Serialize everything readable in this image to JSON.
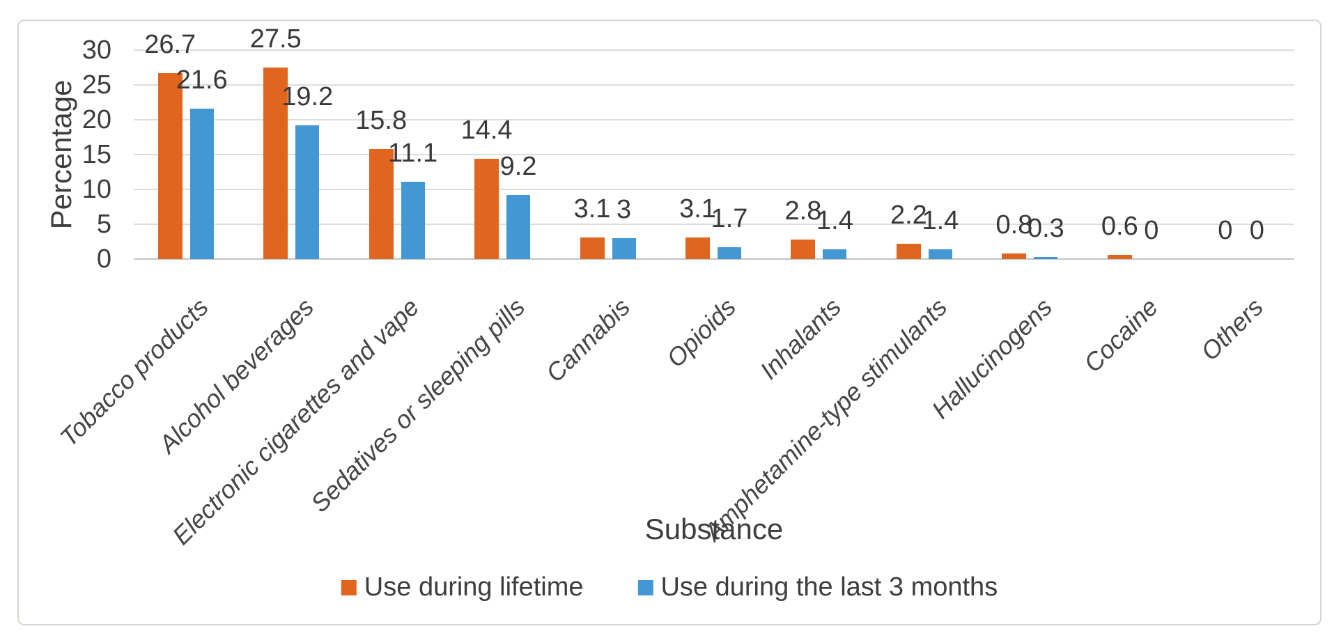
{
  "chart_data": {
    "type": "bar",
    "title": "",
    "categories": [
      "Tobacco products",
      "Alcohol beverages",
      "Electronic cigarettes and vape",
      "Sedatives or sleeping pills",
      "Cannabis",
      "Opioids",
      "Inhalants",
      "Amphetamine-type stimulants",
      "Hallucinogens",
      "Cocaine",
      "Others"
    ],
    "series": [
      {
        "name": "Use during lifetime",
        "color": "#E0651E",
        "values": [
          26.7,
          27.5,
          15.8,
          14.4,
          3.1,
          3.1,
          2.8,
          2.2,
          0.8,
          0.6,
          0
        ],
        "labels": [
          "26.7",
          "27.5",
          "15.8",
          "14.4",
          "3.1",
          "3.1",
          "2.8",
          "2.2",
          "0.8",
          "0.6",
          "0"
        ]
      },
      {
        "name": "Use during the last 3 months",
        "color": "#4397D3",
        "values": [
          21.6,
          19.2,
          11.1,
          9.2,
          3,
          1.7,
          1.4,
          1.4,
          0.3,
          0,
          0
        ],
        "labels": [
          "21.6",
          "19.2",
          "11.1",
          "9.2",
          "3",
          "1.7",
          "1.4",
          "1.4",
          "0.3",
          "0",
          "0"
        ]
      }
    ],
    "xlabel": "Substance",
    "ylabel": "Percentage",
    "ylim": [
      0,
      30
    ],
    "yticks": [
      0,
      5,
      10,
      15,
      20,
      25,
      30
    ],
    "grid": true,
    "legend_position": "bottom",
    "colors": {
      "gridline": "#dcdcdc",
      "axis_line": "#c3c3c3",
      "text": "#3d3d3d",
      "figure_border": "#dbd5d0"
    }
  }
}
